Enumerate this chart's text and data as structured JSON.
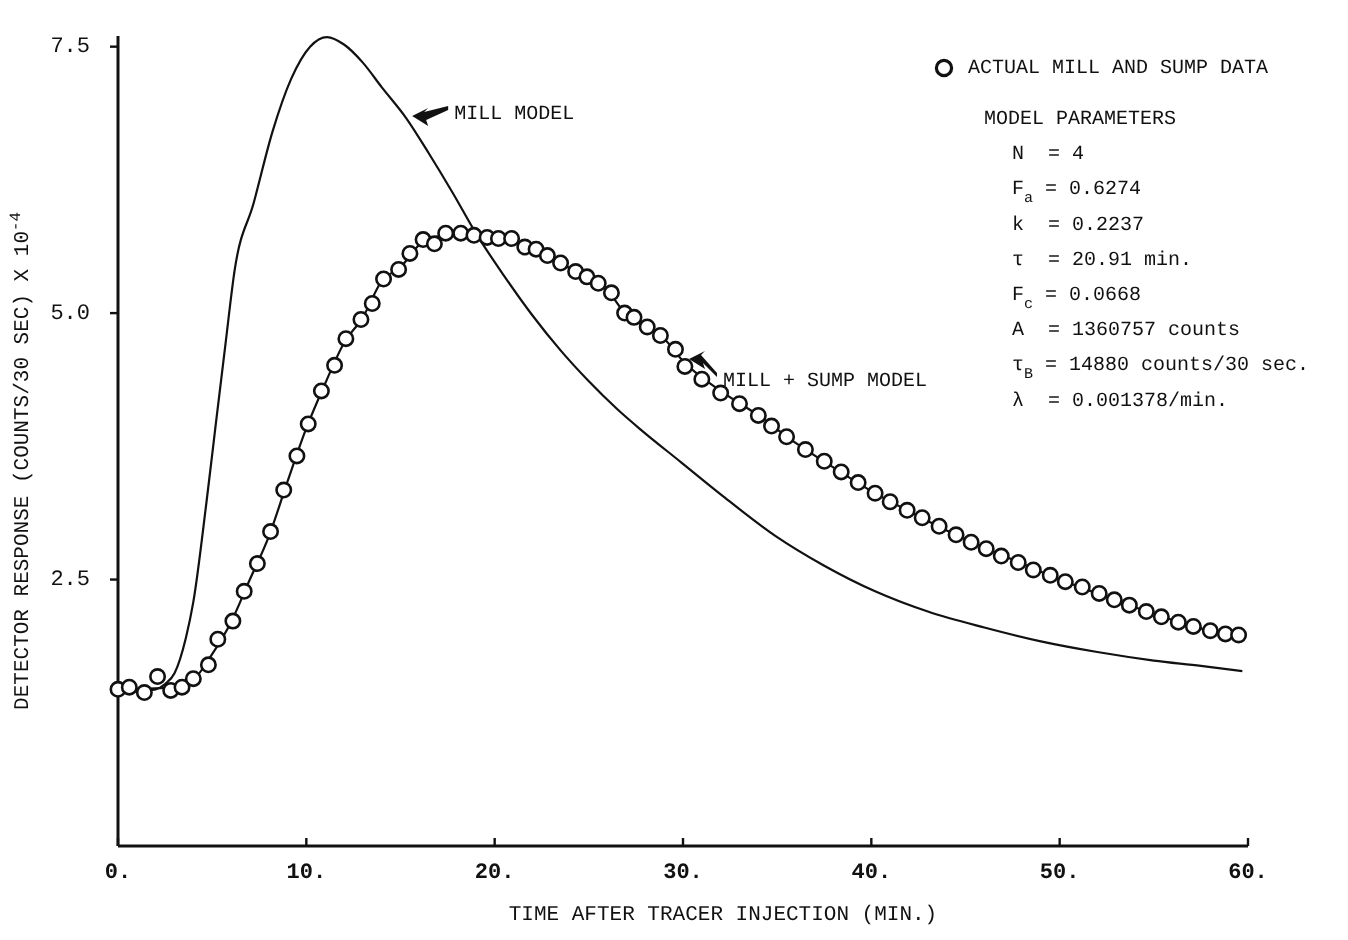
{
  "chart_data": {
    "type": "line",
    "xlabel": "TIME AFTER TRACER INJECTION (MIN.)",
    "ylabel": "DETECTOR RESPONSE (COUNTS/30 SEC) X 10$^{-4}$",
    "xlim": [
      0,
      60
    ],
    "ylim": [
      0,
      7.6
    ],
    "xticks": [
      {
        "value": 0,
        "label": "0."
      },
      {
        "value": 10,
        "label": "10."
      },
      {
        "value": 20,
        "label": "20."
      },
      {
        "value": 30,
        "label": "30."
      },
      {
        "value": 40,
        "label": "40."
      },
      {
        "value": 50,
        "label": "50."
      },
      {
        "value": 60,
        "label": "60."
      }
    ],
    "yticks": [
      2.5,
      {
        "value": 5,
        "label": "5.0"
      },
      7.5
    ],
    "grid": false,
    "legend": "top right",
    "line_style": "solid",
    "series": [
      {
        "name": "MILL MODEL",
        "color": "#111111",
        "marker": "none",
        "x": [
          0,
          1,
          2,
          2.5,
          3,
          3.6,
          4,
          4.7,
          5.2,
          5.7,
          6.2,
          7.2,
          8.2,
          9.2,
          10.2,
          11.1,
          12,
          13,
          14,
          15.3,
          16.5,
          17.8,
          19,
          20.5,
          22,
          23.5,
          25,
          26.5,
          27.8,
          29.9,
          32,
          34.9,
          37.5,
          40.2,
          43,
          46,
          49,
          52,
          55,
          57.5,
          59.7
        ],
        "values": [
          1.45,
          1.45,
          1.47,
          1.52,
          1.62,
          1.95,
          2.29,
          3.23,
          3.97,
          4.7,
          5.41,
          6.03,
          6.7,
          7.2,
          7.5,
          7.59,
          7.52,
          7.35,
          7.12,
          6.83,
          6.5,
          6.12,
          5.75,
          5.35,
          4.98,
          4.65,
          4.36,
          4.1,
          3.9,
          3.6,
          3.3,
          2.91,
          2.63,
          2.39,
          2.2,
          2.05,
          1.92,
          1.82,
          1.74,
          1.69,
          1.64
        ]
      },
      {
        "name": "MILL + SUMP MODEL",
        "color": "#111111",
        "marker": "none",
        "x": [
          0,
          2,
          3,
          4,
          5,
          6,
          7,
          8,
          9,
          10,
          11,
          12,
          13,
          14,
          15,
          16,
          17,
          18,
          19,
          20,
          21,
          22,
          23,
          24,
          25,
          26,
          27,
          28,
          29,
          30,
          32,
          34,
          36,
          38,
          40,
          42,
          44,
          46,
          48,
          50,
          52,
          54,
          56,
          58,
          59.5
        ],
        "values": [
          1.47,
          1.48,
          1.49,
          1.56,
          1.8,
          2.1,
          2.5,
          2.9,
          3.42,
          3.92,
          4.34,
          4.72,
          4.96,
          5.3,
          5.43,
          5.64,
          5.72,
          5.75,
          5.74,
          5.71,
          5.68,
          5.61,
          5.52,
          5.42,
          5.33,
          5.21,
          4.98,
          4.88,
          4.76,
          4.55,
          4.27,
          4.04,
          3.78,
          3.55,
          3.33,
          3.14,
          2.96,
          2.8,
          2.65,
          2.5,
          2.37,
          2.24,
          2.12,
          2.02,
          1.98
        ]
      },
      {
        "name": "ACTUAL MILL AND SUMP DATA",
        "type": "scatter",
        "color": "#111111",
        "marker": "circle",
        "x": [
          0,
          0.6,
          1.4,
          2.1,
          2.8,
          3.4,
          4,
          4.8,
          5.3,
          6.1,
          6.7,
          7.4,
          8.1,
          8.8,
          9.5,
          10.1,
          10.8,
          11.5,
          12.1,
          12.9,
          13.5,
          14.1,
          14.9,
          15.5,
          16.2,
          16.8,
          17.4,
          18.2,
          18.9,
          19.6,
          20.2,
          20.9,
          21.6,
          22.2,
          22.8,
          23.5,
          24.3,
          24.9,
          25.5,
          26.2,
          26.9,
          27.4,
          28.1,
          28.8,
          29.6,
          30.1,
          31,
          32,
          33,
          34,
          34.7,
          35.5,
          36.5,
          37.5,
          38.4,
          39.3,
          40.2,
          41,
          41.9,
          42.7,
          43.6,
          44.5,
          45.3,
          46.1,
          46.9,
          47.8,
          48.6,
          49.5,
          50.3,
          51.2,
          52.1,
          52.9,
          53.7,
          54.6,
          55.4,
          56.3,
          57.1,
          58,
          58.8,
          59.5
        ],
        "values": [
          1.47,
          1.49,
          1.44,
          1.59,
          1.46,
          1.49,
          1.57,
          1.7,
          1.94,
          2.11,
          2.39,
          2.65,
          2.95,
          3.34,
          3.66,
          3.96,
          4.27,
          4.51,
          4.76,
          4.94,
          5.09,
          5.32,
          5.41,
          5.56,
          5.69,
          5.65,
          5.75,
          5.75,
          5.73,
          5.71,
          5.7,
          5.7,
          5.62,
          5.6,
          5.54,
          5.47,
          5.39,
          5.34,
          5.28,
          5.19,
          5,
          4.96,
          4.87,
          4.79,
          4.66,
          4.5,
          4.38,
          4.25,
          4.15,
          4.04,
          3.94,
          3.84,
          3.72,
          3.61,
          3.51,
          3.41,
          3.31,
          3.23,
          3.15,
          3.08,
          3,
          2.92,
          2.85,
          2.79,
          2.72,
          2.66,
          2.59,
          2.54,
          2.48,
          2.43,
          2.37,
          2.31,
          2.26,
          2.2,
          2.15,
          2.1,
          2.06,
          2.02,
          1.99,
          1.98
        ]
      }
    ],
    "annotations": [
      "MODEL PARAMETERS",
      "N  = 4",
      "F$_{a}$ = 0.6274",
      "k  = 0.2237",
      "τ  = 20.91 min.",
      "F$_{c}$ = 0.0668",
      "A  = 1360757 counts",
      "τ$_{B}$ = 14880 counts/30 sec.",
      "λ  = 0.001378/min."
    ]
  }
}
